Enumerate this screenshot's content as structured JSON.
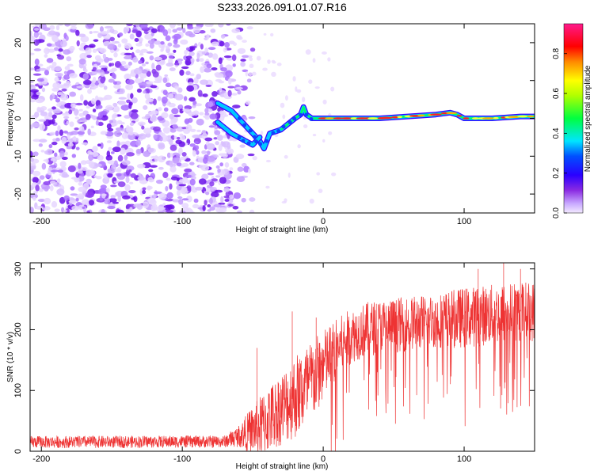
{
  "title": "S233.2026.091.01.07.R16",
  "chart_data": [
    {
      "type": "heatmap",
      "name": "spectrogram",
      "xlabel": "Height of straight line (km)",
      "ylabel": "Frequency (Hz)",
      "xlim": [
        -208,
        150
      ],
      "ylim": [
        -25,
        25
      ],
      "xticks": [
        -200,
        -100,
        0,
        100
      ],
      "yticks": [
        -20,
        -10,
        0,
        10,
        20
      ],
      "colorbar": {
        "label": "Normalized spectral amplitude",
        "range": [
          0,
          0.95
        ],
        "ticks": [
          0.0,
          0.2,
          0.4,
          0.6,
          0.8
        ],
        "tick_labels": [
          "0.0",
          "0.2",
          "0.4",
          "0.6",
          "0.8"
        ],
        "colors": [
          "#e8d8ff",
          "#c8a8ff",
          "#8a2be2",
          "#3a00ff",
          "#0000ff",
          "#00ffff",
          "#00ff00",
          "#ffff00",
          "#ff6600",
          "#ff0000",
          "#ff1493"
        ]
      },
      "noise_region_km": [
        -208,
        -65
      ],
      "signal_track": {
        "x": [
          -75,
          -65,
          -55,
          -50,
          -45,
          -42,
          -38,
          -30,
          -20,
          -16,
          -14,
          -12,
          -8,
          0,
          10,
          20,
          40,
          60,
          80,
          90,
          95,
          100,
          120,
          140,
          150
        ],
        "y": [
          4,
          2,
          -2,
          -4,
          -6,
          -8,
          -4,
          -3,
          0,
          1,
          3,
          1,
          0,
          0,
          0,
          0,
          0,
          0.5,
          1,
          1.5,
          1,
          0,
          0,
          0.5,
          0.5
        ],
        "branch_x": [
          -75,
          -65,
          -55,
          -50,
          -45
        ],
        "branch_y": [
          -1,
          -4,
          -6,
          -7,
          -5
        ],
        "peak_amplitude_start_km": 0
      }
    },
    {
      "type": "line",
      "name": "snr",
      "xlabel": "Height of straight line (km)",
      "ylabel": "SNR (10 * v/v)",
      "xlim": [
        -208,
        150
      ],
      "ylim": [
        0,
        310
      ],
      "xticks": [
        -200,
        -100,
        0,
        100
      ],
      "yticks": [
        0,
        100,
        200,
        300
      ],
      "color": "#ee3333",
      "envelope": {
        "x": [
          -208,
          -70,
          -60,
          -50,
          -45,
          -40,
          -30,
          -20,
          -10,
          0,
          10,
          20,
          30,
          40,
          60,
          80,
          100,
          120,
          140,
          150
        ],
        "base": [
          15,
          16,
          25,
          35,
          40,
          50,
          70,
          90,
          110,
          140,
          170,
          190,
          200,
          205,
          210,
          215,
          220,
          225,
          230,
          230
        ],
        "amp": [
          10,
          10,
          18,
          40,
          50,
          55,
          60,
          70,
          70,
          60,
          50,
          45,
          45,
          45,
          45,
          45,
          50,
          50,
          50,
          50
        ]
      },
      "spikes": [
        {
          "x": -47,
          "y": 170
        },
        {
          "x": -22,
          "y": 230
        },
        {
          "x": -5,
          "y": 220
        },
        {
          "x": 110,
          "y": 300
        },
        {
          "x": 128,
          "y": 310
        },
        {
          "x": 140,
          "y": 300
        }
      ]
    }
  ]
}
